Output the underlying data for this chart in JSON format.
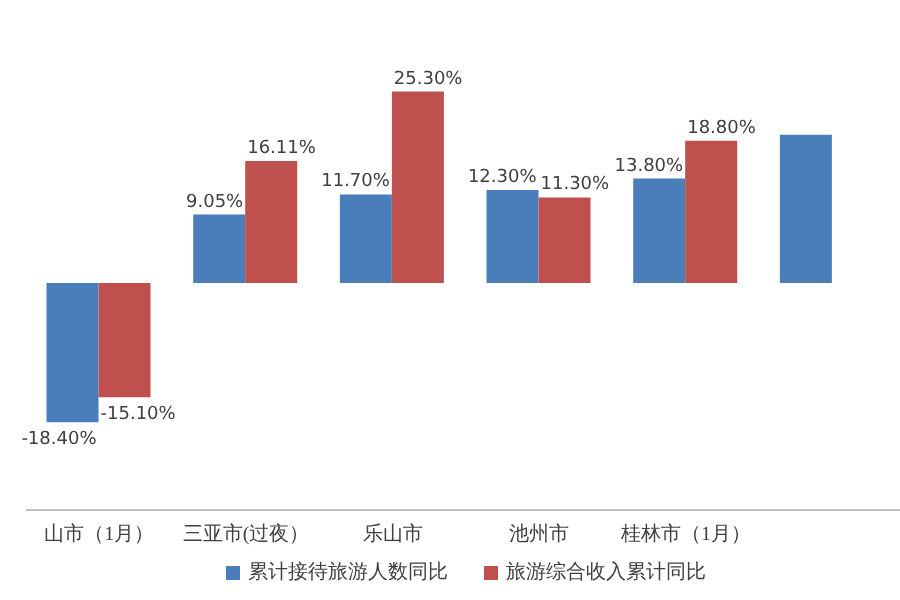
{
  "chart_data": {
    "type": "bar",
    "categories": [
      "山市（1月）",
      "三亚市(过夜）",
      "乐山市",
      "池州市",
      "桂林市（1月）",
      null
    ],
    "series": [
      {
        "name": "累计接待旅游人数同比",
        "color": "#4a7ebb",
        "values": [
          -18.4,
          9.05,
          11.7,
          12.3,
          13.8,
          19.6
        ],
        "value_labels": [
          "-18.40%",
          "9.05%",
          "11.70%",
          "12.30%",
          "13.80%",
          null
        ]
      },
      {
        "name": "旅游综合收入累计同比",
        "color": "#c0504d",
        "values": [
          -15.1,
          16.11,
          25.3,
          11.3,
          18.8,
          null
        ],
        "value_labels": [
          "-15.10%",
          "16.11%",
          "25.30%",
          "11.30%",
          "18.80%",
          null
        ]
      }
    ],
    "legend": "bottom",
    "grid": false
  }
}
